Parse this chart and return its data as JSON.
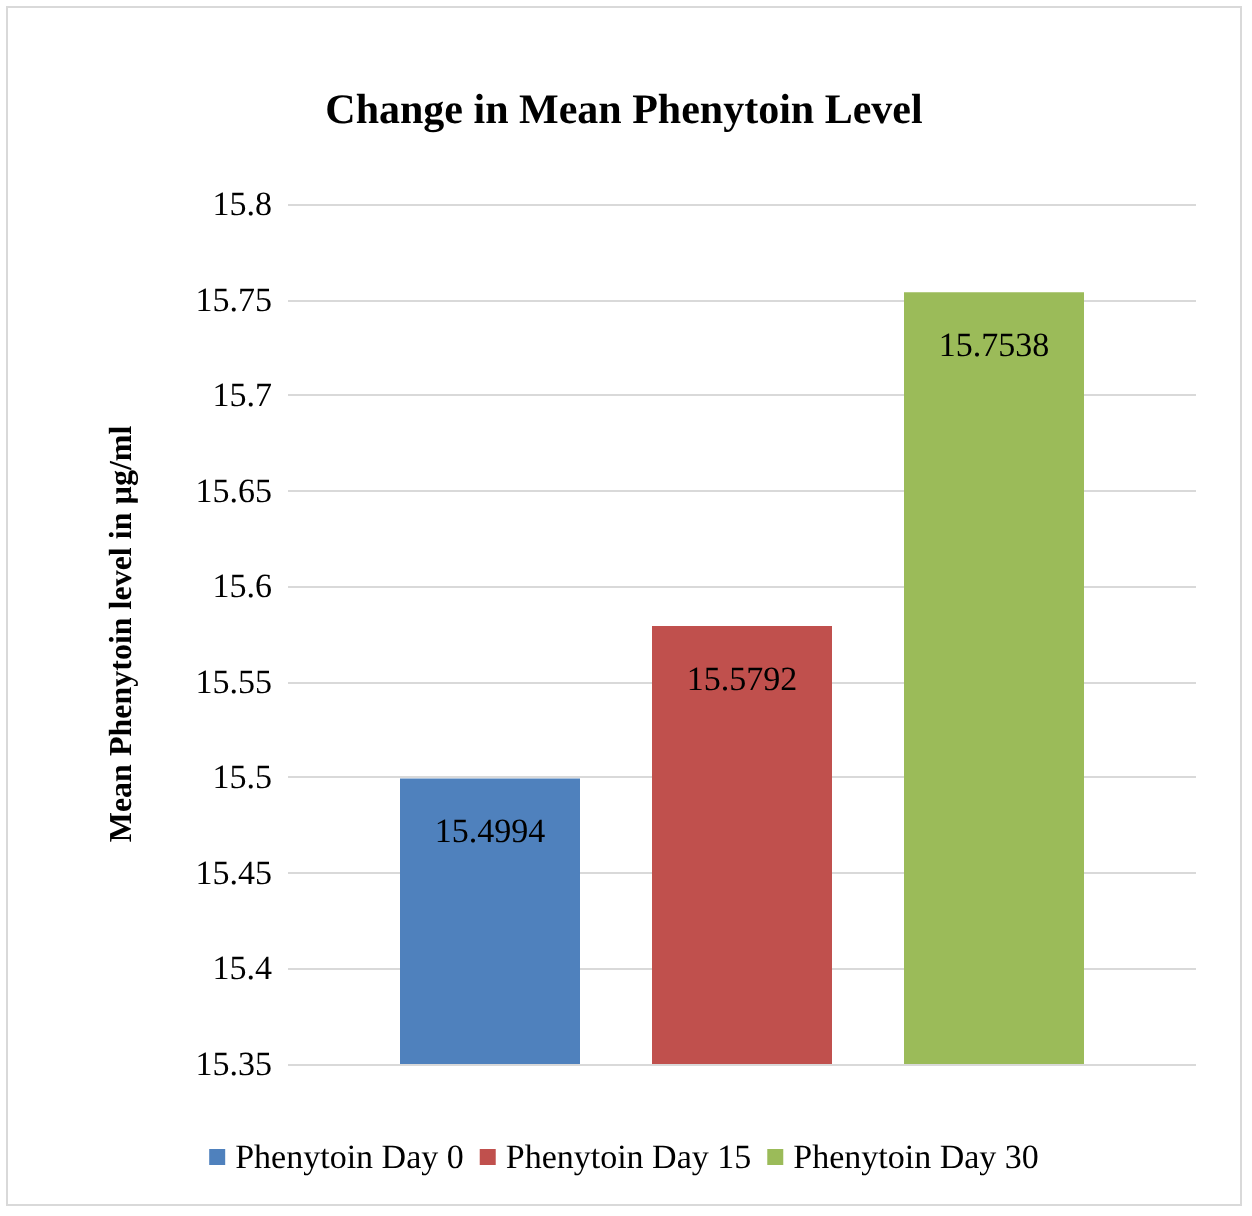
{
  "chart_data": {
    "type": "bar",
    "title": "Change in Mean Phenytoin Level",
    "ylabel": "Mean Phenytoin level in µg/ml",
    "categories": [
      null
    ],
    "series": [
      {
        "name": "Phenytoin Day 0",
        "color": "#4f81bd",
        "values": [
          15.4994
        ]
      },
      {
        "name": "Phenytoin Day 15",
        "color": "#c0504d",
        "values": [
          15.5792
        ]
      },
      {
        "name": "Phenytoin Day 30",
        "color": "#9bbb59",
        "values": [
          15.7538
        ]
      }
    ],
    "ylim": [
      15.35,
      15.8
    ],
    "yticks": [
      15.35,
      15.4,
      15.45,
      15.5,
      15.55,
      15.6,
      15.65,
      15.7,
      15.75,
      15.8
    ],
    "grid": "y",
    "legend": "bottom",
    "data_labels": true
  }
}
